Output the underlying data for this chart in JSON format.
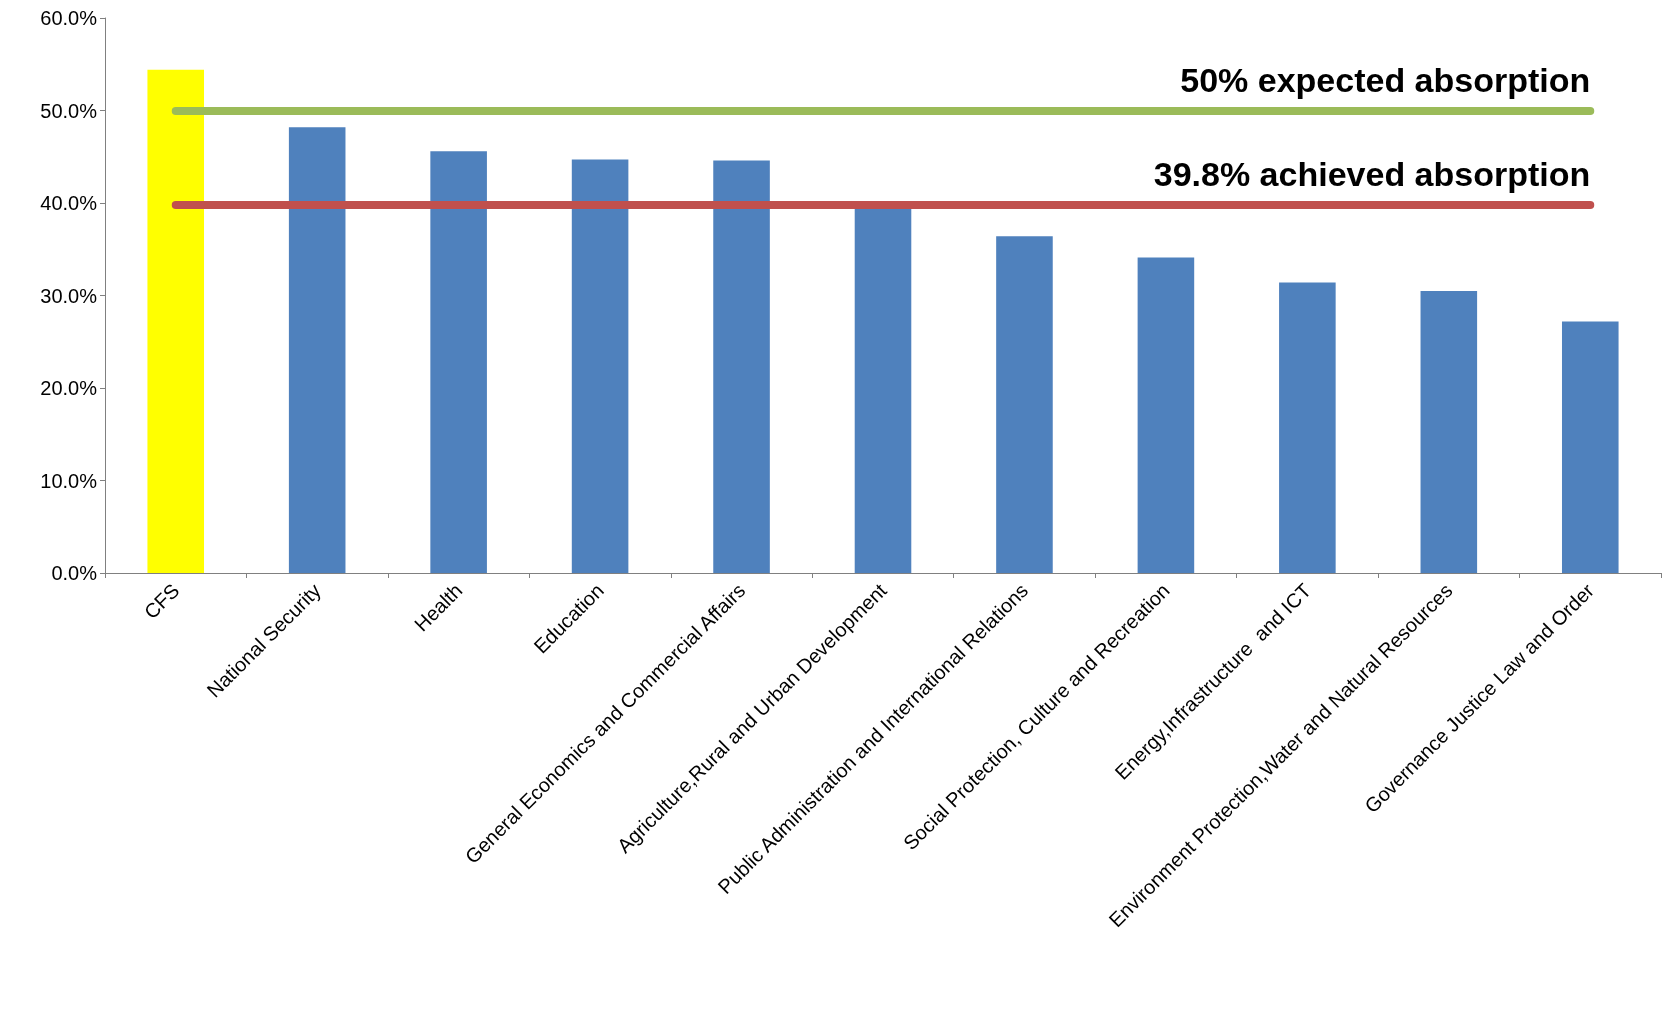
{
  "chart_data": {
    "type": "bar",
    "categories": [
      "CFS",
      "National Security",
      "Health",
      "Education",
      "General Economics and Commercial Affairs",
      "Agriculture,Rural and Urban Development",
      "Public Administration and International Relations",
      "Social Protection, Culture and Recreation",
      "Energy,Infrastructure  and ICT",
      "Environment Protection,Water and Natural Resources",
      "Governance Justice Law and Order"
    ],
    "values": [
      54.4,
      48.2,
      45.6,
      44.7,
      44.6,
      39.7,
      36.4,
      34.1,
      31.4,
      30.5,
      27.2
    ],
    "colors": [
      "#ffff00",
      "#4f81bd",
      "#4f81bd",
      "#4f81bd",
      "#4f81bd",
      "#4f81bd",
      "#4f81bd",
      "#4f81bd",
      "#4f81bd",
      "#4f81bd",
      "#4f81bd"
    ],
    "ylim": [
      0,
      60
    ],
    "yticks": [
      {
        "value": 0,
        "label": "0.0%"
      },
      {
        "value": 10,
        "label": "10.0%"
      },
      {
        "value": 20,
        "label": "20.0%"
      },
      {
        "value": 30,
        "label": "30.0%"
      },
      {
        "value": 40,
        "label": "40.0%"
      },
      {
        "value": 50,
        "label": "50.0%"
      },
      {
        "value": 60,
        "label": "60.0%"
      }
    ],
    "ref_lines": [
      {
        "axis": "y",
        "value": 50,
        "label": "50% expected absorption",
        "color": "#9bbb59"
      },
      {
        "axis": "y",
        "value": 39.8,
        "label": "39.8% achieved absorption",
        "color": "#c0504d"
      }
    ],
    "grid": false
  }
}
